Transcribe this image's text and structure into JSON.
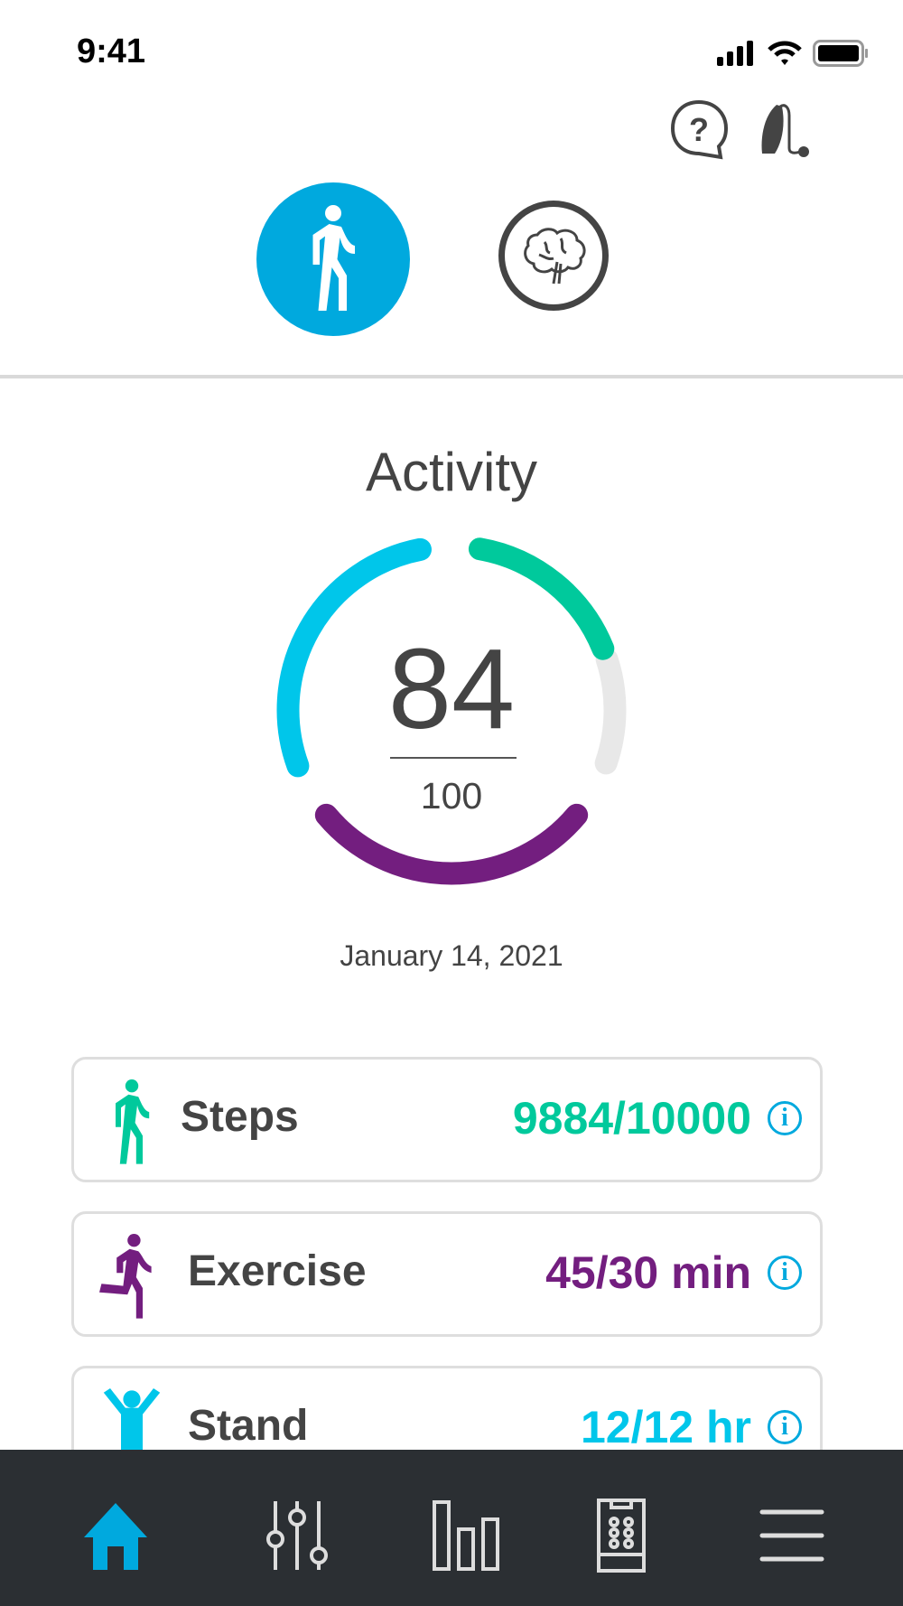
{
  "status_bar": {
    "time": "9:41"
  },
  "header": {
    "help_icon": "help-bubble-icon",
    "device_icon": "hearing-aid-icon"
  },
  "modes": [
    {
      "name": "activity",
      "icon": "walking-icon",
      "selected": true
    },
    {
      "name": "brain",
      "icon": "brain-icon",
      "selected": false
    }
  ],
  "main": {
    "title": "Activity",
    "score": "84",
    "max": "100",
    "date": "January 14, 2021",
    "ring": {
      "steps_color": "#00c99c",
      "exercise_color": "#731e7f",
      "stand_color": "#00c6ea",
      "track_color": "#e8e8e8"
    }
  },
  "metrics": [
    {
      "label": "Steps",
      "value": "9884/10000",
      "color": "#00c99c",
      "icon": "walking-icon"
    },
    {
      "label": "Exercise",
      "value": "45/30 min",
      "color": "#731e7f",
      "icon": "running-icon"
    },
    {
      "label": "Stand",
      "value": "12/12 hr",
      "color": "#00c6ea",
      "icon": "standing-icon"
    }
  ],
  "info_glyph": "i",
  "accent": "#00a9de",
  "nav": [
    {
      "icon": "home-icon",
      "active": true
    },
    {
      "icon": "sliders-icon"
    },
    {
      "icon": "bar-chart-icon"
    },
    {
      "icon": "remote-control-icon"
    },
    {
      "icon": "menu-icon"
    }
  ]
}
